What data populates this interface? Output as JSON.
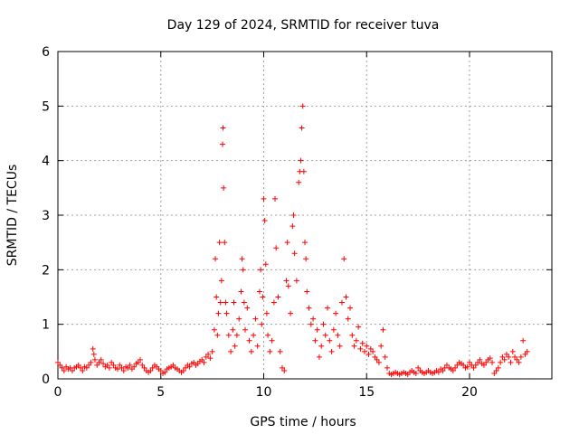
{
  "chart_data": {
    "type": "scatter",
    "title": "Day 129 of 2024, SRMTID for receiver tuva",
    "xlabel": "GPS time / hours",
    "ylabel": "SRMTID / TECUs",
    "xlim": [
      0,
      24
    ],
    "ylim": [
      0,
      6
    ],
    "xticks": [
      "0",
      "5",
      "10",
      "15",
      "20"
    ],
    "yticks": [
      "0",
      "1",
      "2",
      "3",
      "4",
      "5",
      "6"
    ],
    "grid": true,
    "marker": "+",
    "color": "#ff0000",
    "series": [
      {
        "name": "tuva",
        "points": [
          [
            0.0,
            0.3
          ],
          [
            0.1,
            0.25
          ],
          [
            0.2,
            0.2
          ],
          [
            0.3,
            0.15
          ],
          [
            0.4,
            0.22
          ],
          [
            0.5,
            0.18
          ],
          [
            0.6,
            0.2
          ],
          [
            0.7,
            0.15
          ],
          [
            0.8,
            0.2
          ],
          [
            0.9,
            0.22
          ],
          [
            1.0,
            0.25
          ],
          [
            1.1,
            0.2
          ],
          [
            1.2,
            0.15
          ],
          [
            1.3,
            0.22
          ],
          [
            1.4,
            0.2
          ],
          [
            1.5,
            0.25
          ],
          [
            1.6,
            0.3
          ],
          [
            1.7,
            0.55
          ],
          [
            1.75,
            0.45
          ],
          [
            1.8,
            0.35
          ],
          [
            1.9,
            0.25
          ],
          [
            2.0,
            0.3
          ],
          [
            2.1,
            0.35
          ],
          [
            2.2,
            0.28
          ],
          [
            2.3,
            0.22
          ],
          [
            2.4,
            0.25
          ],
          [
            2.5,
            0.2
          ],
          [
            2.6,
            0.3
          ],
          [
            2.7,
            0.25
          ],
          [
            2.8,
            0.2
          ],
          [
            2.9,
            0.18
          ],
          [
            3.0,
            0.25
          ],
          [
            3.1,
            0.2
          ],
          [
            3.2,
            0.15
          ],
          [
            3.3,
            0.22
          ],
          [
            3.4,
            0.2
          ],
          [
            3.5,
            0.25
          ],
          [
            3.6,
            0.18
          ],
          [
            3.7,
            0.22
          ],
          [
            3.8,
            0.28
          ],
          [
            3.9,
            0.3
          ],
          [
            4.0,
            0.35
          ],
          [
            4.1,
            0.25
          ],
          [
            4.2,
            0.2
          ],
          [
            4.3,
            0.15
          ],
          [
            4.4,
            0.12
          ],
          [
            4.5,
            0.15
          ],
          [
            4.6,
            0.2
          ],
          [
            4.7,
            0.25
          ],
          [
            4.8,
            0.22
          ],
          [
            4.9,
            0.18
          ],
          [
            5.0,
            0.15
          ],
          [
            5.1,
            0.1
          ],
          [
            5.2,
            0.12
          ],
          [
            5.3,
            0.18
          ],
          [
            5.4,
            0.2
          ],
          [
            5.5,
            0.22
          ],
          [
            5.6,
            0.25
          ],
          [
            5.7,
            0.2
          ],
          [
            5.8,
            0.18
          ],
          [
            5.9,
            0.15
          ],
          [
            6.0,
            0.12
          ],
          [
            6.1,
            0.15
          ],
          [
            6.2,
            0.2
          ],
          [
            6.3,
            0.25
          ],
          [
            6.4,
            0.22
          ],
          [
            6.5,
            0.28
          ],
          [
            6.6,
            0.3
          ],
          [
            6.7,
            0.25
          ],
          [
            6.8,
            0.28
          ],
          [
            6.9,
            0.32
          ],
          [
            7.0,
            0.35
          ],
          [
            7.1,
            0.3
          ],
          [
            7.2,
            0.4
          ],
          [
            7.3,
            0.45
          ],
          [
            7.4,
            0.38
          ],
          [
            7.5,
            0.5
          ],
          [
            7.6,
            0.9
          ],
          [
            7.65,
            2.2
          ],
          [
            7.7,
            1.5
          ],
          [
            7.75,
            0.8
          ],
          [
            7.8,
            1.2
          ],
          [
            7.85,
            2.5
          ],
          [
            7.9,
            1.4
          ],
          [
            7.95,
            1.8
          ],
          [
            8.0,
            4.3
          ],
          [
            8.02,
            4.6
          ],
          [
            8.05,
            3.5
          ],
          [
            8.1,
            2.5
          ],
          [
            8.15,
            1.4
          ],
          [
            8.2,
            1.2
          ],
          [
            8.3,
            0.8
          ],
          [
            8.4,
            0.5
          ],
          [
            8.5,
            0.9
          ],
          [
            8.55,
            1.4
          ],
          [
            8.6,
            0.6
          ],
          [
            8.7,
            0.8
          ],
          [
            8.8,
            1.1
          ],
          [
            8.9,
            1.6
          ],
          [
            8.95,
            2.2
          ],
          [
            9.0,
            2.0
          ],
          [
            9.05,
            1.4
          ],
          [
            9.1,
            0.9
          ],
          [
            9.2,
            1.3
          ],
          [
            9.3,
            0.7
          ],
          [
            9.4,
            0.5
          ],
          [
            9.5,
            0.8
          ],
          [
            9.6,
            1.1
          ],
          [
            9.7,
            0.6
          ],
          [
            9.8,
            1.6
          ],
          [
            9.85,
            2.0
          ],
          [
            9.9,
            1.0
          ],
          [
            9.95,
            1.5
          ],
          [
            10.0,
            3.3
          ],
          [
            10.05,
            2.9
          ],
          [
            10.1,
            2.1
          ],
          [
            10.15,
            1.2
          ],
          [
            10.2,
            0.8
          ],
          [
            10.3,
            0.5
          ],
          [
            10.4,
            0.7
          ],
          [
            10.5,
            1.4
          ],
          [
            10.55,
            3.3
          ],
          [
            10.6,
            2.4
          ],
          [
            10.7,
            1.5
          ],
          [
            10.8,
            0.5
          ],
          [
            10.9,
            0.2
          ],
          [
            11.0,
            0.15
          ],
          [
            11.1,
            1.8
          ],
          [
            11.15,
            2.5
          ],
          [
            11.2,
            1.7
          ],
          [
            11.3,
            1.2
          ],
          [
            11.4,
            2.8
          ],
          [
            11.45,
            3.0
          ],
          [
            11.5,
            2.3
          ],
          [
            11.6,
            1.8
          ],
          [
            11.7,
            3.6
          ],
          [
            11.75,
            3.8
          ],
          [
            11.8,
            4.0
          ],
          [
            11.85,
            4.6
          ],
          [
            11.9,
            5.0
          ],
          [
            11.95,
            3.8
          ],
          [
            12.0,
            2.5
          ],
          [
            12.05,
            2.2
          ],
          [
            12.1,
            1.6
          ],
          [
            12.2,
            1.3
          ],
          [
            12.3,
            1.0
          ],
          [
            12.4,
            1.1
          ],
          [
            12.5,
            0.7
          ],
          [
            12.6,
            0.9
          ],
          [
            12.7,
            0.4
          ],
          [
            12.8,
            0.6
          ],
          [
            12.9,
            1.0
          ],
          [
            13.0,
            0.8
          ],
          [
            13.1,
            1.3
          ],
          [
            13.2,
            0.7
          ],
          [
            13.3,
            0.5
          ],
          [
            13.4,
            0.9
          ],
          [
            13.5,
            1.2
          ],
          [
            13.6,
            0.8
          ],
          [
            13.7,
            0.6
          ],
          [
            13.8,
            1.4
          ],
          [
            13.9,
            2.2
          ],
          [
            14.0,
            1.5
          ],
          [
            14.1,
            1.1
          ],
          [
            14.2,
            1.3
          ],
          [
            14.3,
            0.8
          ],
          [
            14.4,
            0.6
          ],
          [
            14.5,
            0.7
          ],
          [
            14.6,
            0.95
          ],
          [
            14.7,
            0.55
          ],
          [
            14.8,
            0.65
          ],
          [
            14.9,
            0.5
          ],
          [
            15.0,
            0.6
          ],
          [
            15.1,
            0.45
          ],
          [
            15.2,
            0.55
          ],
          [
            15.3,
            0.5
          ],
          [
            15.4,
            0.4
          ],
          [
            15.5,
            0.35
          ],
          [
            15.6,
            0.3
          ],
          [
            15.7,
            0.6
          ],
          [
            15.8,
            0.9
          ],
          [
            15.9,
            0.4
          ],
          [
            16.0,
            0.2
          ],
          [
            16.1,
            0.1
          ],
          [
            16.2,
            0.08
          ],
          [
            16.3,
            0.1
          ],
          [
            16.4,
            0.12
          ],
          [
            16.5,
            0.1
          ],
          [
            16.6,
            0.08
          ],
          [
            16.7,
            0.1
          ],
          [
            16.8,
            0.12
          ],
          [
            16.9,
            0.1
          ],
          [
            17.0,
            0.08
          ],
          [
            17.1,
            0.12
          ],
          [
            17.2,
            0.15
          ],
          [
            17.3,
            0.12
          ],
          [
            17.4,
            0.1
          ],
          [
            17.5,
            0.2
          ],
          [
            17.6,
            0.15
          ],
          [
            17.7,
            0.12
          ],
          [
            17.8,
            0.1
          ],
          [
            17.9,
            0.12
          ],
          [
            18.0,
            0.15
          ],
          [
            18.1,
            0.12
          ],
          [
            18.2,
            0.1
          ],
          [
            18.3,
            0.12
          ],
          [
            18.4,
            0.15
          ],
          [
            18.5,
            0.12
          ],
          [
            18.6,
            0.18
          ],
          [
            18.7,
            0.15
          ],
          [
            18.8,
            0.2
          ],
          [
            18.9,
            0.25
          ],
          [
            19.0,
            0.2
          ],
          [
            19.1,
            0.18
          ],
          [
            19.2,
            0.15
          ],
          [
            19.3,
            0.2
          ],
          [
            19.4,
            0.25
          ],
          [
            19.5,
            0.3
          ],
          [
            19.6,
            0.28
          ],
          [
            19.7,
            0.25
          ],
          [
            19.8,
            0.2
          ],
          [
            19.9,
            0.22
          ],
          [
            20.0,
            0.3
          ],
          [
            20.1,
            0.25
          ],
          [
            20.2,
            0.2
          ],
          [
            20.3,
            0.25
          ],
          [
            20.4,
            0.3
          ],
          [
            20.5,
            0.35
          ],
          [
            20.6,
            0.28
          ],
          [
            20.7,
            0.25
          ],
          [
            20.8,
            0.3
          ],
          [
            20.9,
            0.35
          ],
          [
            21.0,
            0.38
          ],
          [
            21.1,
            0.3
          ],
          [
            21.2,
            0.1
          ],
          [
            21.3,
            0.15
          ],
          [
            21.4,
            0.2
          ],
          [
            21.5,
            0.3
          ],
          [
            21.6,
            0.4
          ],
          [
            21.7,
            0.35
          ],
          [
            21.8,
            0.45
          ],
          [
            21.9,
            0.4
          ],
          [
            22.0,
            0.3
          ],
          [
            22.1,
            0.5
          ],
          [
            22.2,
            0.4
          ],
          [
            22.3,
            0.35
          ],
          [
            22.4,
            0.3
          ],
          [
            22.5,
            0.4
          ],
          [
            22.6,
            0.7
          ],
          [
            22.7,
            0.45
          ],
          [
            22.8,
            0.5
          ]
        ]
      }
    ]
  }
}
